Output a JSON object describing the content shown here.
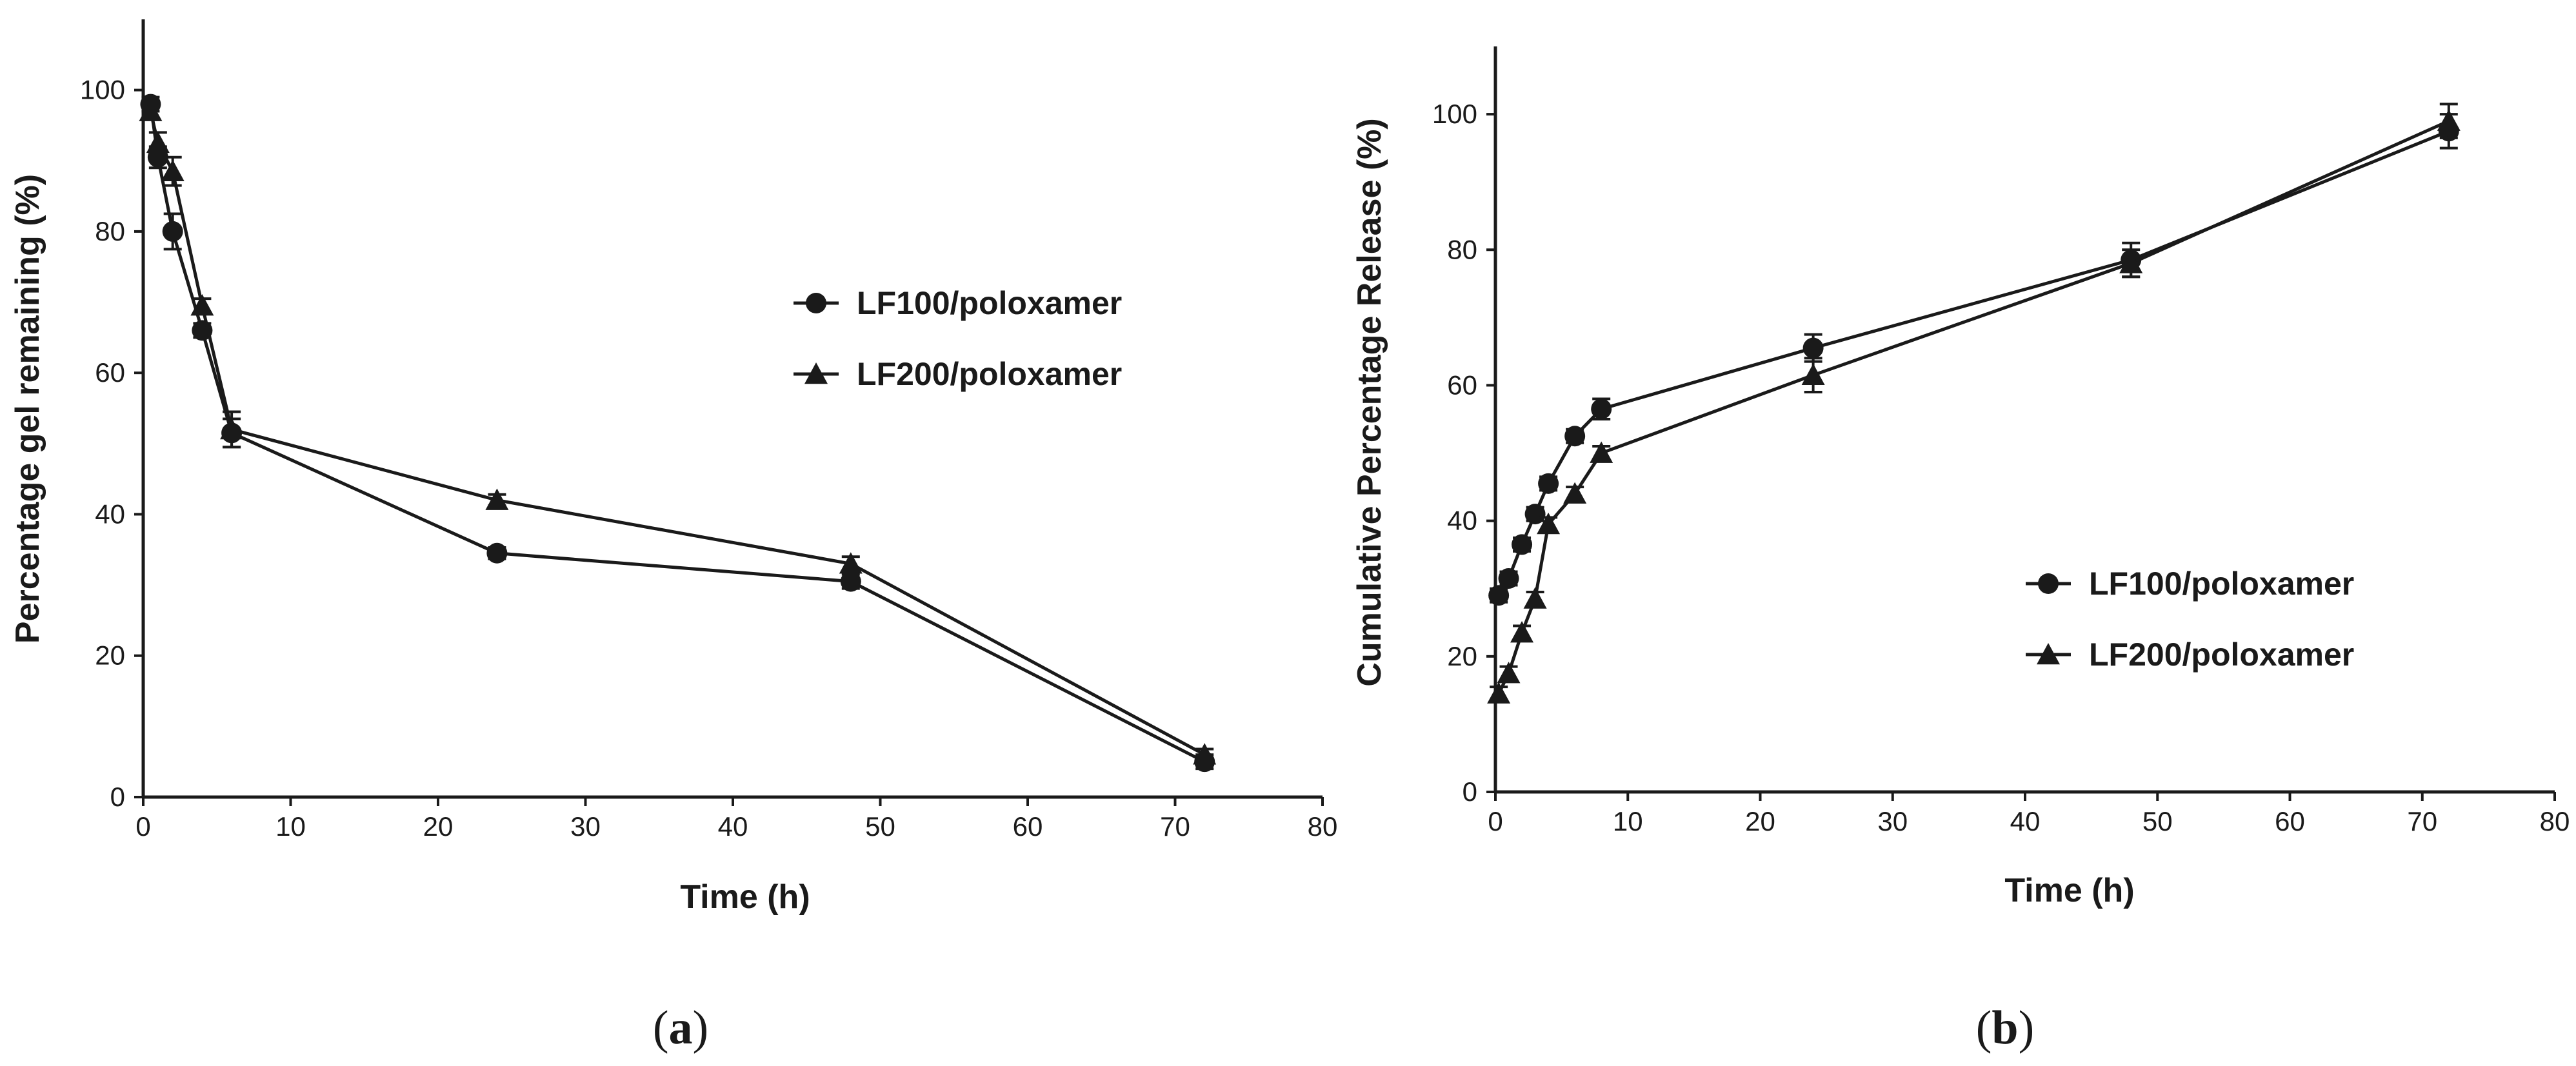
{
  "chart_data": [
    {
      "type": "line",
      "panel_label": "a",
      "xlabel": "Time (h)",
      "ylabel": "Percentage gel remaining (%)",
      "xlim": [
        0,
        80
      ],
      "ylim": [
        0,
        110
      ],
      "xticks": [
        "0",
        "10",
        "20",
        "30",
        "40",
        "50",
        "60",
        "70",
        "80"
      ],
      "yticks": [
        "0",
        "20",
        "40",
        "60",
        "80",
        "100"
      ],
      "grid": false,
      "legend_position": "center-right",
      "series": [
        {
          "name": "LF100/poloxamer",
          "marker": "circle",
          "x": [
            0.5,
            1,
            2,
            4,
            6,
            24,
            48,
            72
          ],
          "y": [
            98,
            90.5,
            80,
            66,
            51.5,
            34.5,
            30.5,
            5
          ],
          "err": [
            1,
            1.5,
            2.5,
            1,
            2,
            0.8,
            1,
            1
          ]
        },
        {
          "name": "LF200/poloxamer",
          "marker": "triangle",
          "x": [
            0.5,
            1,
            2,
            4,
            6,
            24,
            48,
            72
          ],
          "y": [
            97,
            92.5,
            88.5,
            69.5,
            52,
            42,
            33,
            6
          ],
          "err": [
            1,
            1.5,
            2,
            1,
            2.5,
            0.8,
            1,
            0.8
          ]
        }
      ]
    },
    {
      "type": "line",
      "panel_label": "b",
      "xlabel": "Time (h)",
      "ylabel": "Cumulative Percentage Release (%)",
      "xlim": [
        0,
        80
      ],
      "ylim": [
        0,
        110
      ],
      "xticks": [
        "0",
        "10",
        "20",
        "30",
        "40",
        "50",
        "60",
        "70",
        "80"
      ],
      "yticks": [
        "0",
        "20",
        "40",
        "60",
        "80",
        "100"
      ],
      "grid": false,
      "legend_position": "lower-right",
      "series": [
        {
          "name": "LF100/poloxamer",
          "marker": "circle",
          "x": [
            0.25,
            1,
            2,
            3,
            4,
            6,
            8,
            24,
            48,
            72
          ],
          "y": [
            29,
            31.5,
            36.5,
            41,
            45.5,
            52.5,
            56.5,
            65.5,
            78.5,
            97.5
          ],
          "err": [
            1,
            1,
            1,
            1,
            1,
            1,
            1.5,
            2,
            2.5,
            2.5
          ]
        },
        {
          "name": "LF200/poloxamer",
          "marker": "triangle",
          "x": [
            0.25,
            1,
            2,
            3,
            4,
            6,
            8,
            24,
            48,
            72
          ],
          "y": [
            14.5,
            17.5,
            23.5,
            28.5,
            39.5,
            44,
            50,
            61.5,
            78,
            99
          ],
          "err": [
            1,
            1,
            1,
            1,
            1,
            1,
            1,
            2.5,
            2,
            2.5
          ]
        }
      ]
    }
  ]
}
